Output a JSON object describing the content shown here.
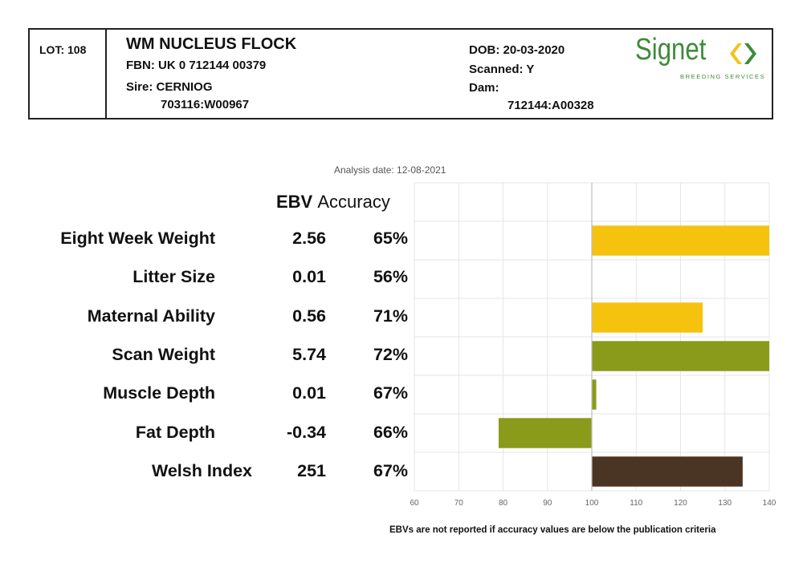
{
  "header": {
    "lot": "LOT: 108",
    "flock": "WM NUCLEUS FLOCK",
    "fbn": "FBN: UK 0 712144 00379",
    "sire_label": "Sire: CERNIOG",
    "sire_id": "703116:W00967",
    "dob": "DOB: 20-03-2020",
    "scanned": "Scanned: Y",
    "dam_label": "Dam:",
    "dam_id": "712144:A00328"
  },
  "logo": {
    "word": "Signet",
    "sub": "BREEDING SERVICES",
    "colors": {
      "green": "#3e8b3a",
      "yellow": "#f2c416"
    }
  },
  "report": {
    "analysis_date": "Analysis date: 12-08-2021",
    "col_ebv": "EBV",
    "col_accuracy": "Accuracy",
    "footnote": "EBVs are not reported if accuracy values are below the publication criteria"
  },
  "traits": [
    {
      "name": "Eight Week Weight",
      "ebv": "2.56",
      "accuracy": "65%"
    },
    {
      "name": "Litter Size",
      "ebv": "0.01",
      "accuracy": "56%"
    },
    {
      "name": "Maternal Ability",
      "ebv": "0.56",
      "accuracy": "71%"
    },
    {
      "name": "Scan Weight",
      "ebv": "5.74",
      "accuracy": "72%"
    },
    {
      "name": "Muscle Depth",
      "ebv": "0.01",
      "accuracy": "67%"
    },
    {
      "name": "Fat Depth",
      "ebv": "-0.34",
      "accuracy": "66%"
    },
    {
      "name": "Welsh Index",
      "ebv": "251",
      "accuracy": "67%"
    }
  ],
  "chart_data": {
    "type": "bar",
    "orientation": "horizontal",
    "baseline": 100,
    "xlim": [
      60,
      140
    ],
    "xticks": [
      "60",
      "70",
      "80",
      "90",
      "100",
      "110",
      "120",
      "130",
      "140"
    ],
    "categories": [
      "Eight Week Weight",
      "Litter Size",
      "Maternal Ability",
      "Scan Weight",
      "Muscle Depth",
      "Fat Depth",
      "Welsh Index"
    ],
    "values": [
      140,
      null,
      125,
      140,
      101,
      79,
      134
    ],
    "colors": [
      "#f5c30e",
      null,
      "#f5c30e",
      "#8a9a1a",
      "#8a9a1a",
      "#8a9a1a",
      "#4a3424"
    ],
    "grid": true
  }
}
